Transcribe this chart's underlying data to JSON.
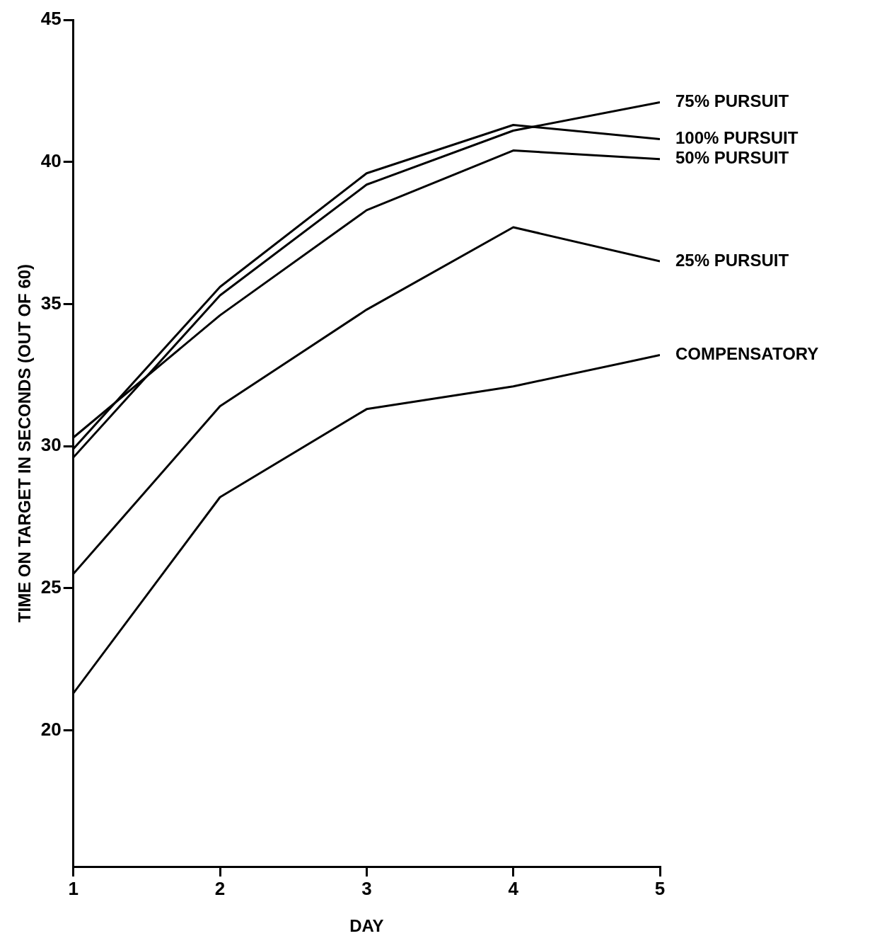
{
  "chart_data": {
    "type": "line",
    "xlabel": "DAY",
    "ylabel": "TIME ON TARGET IN SECONDS (OUT OF 60)",
    "x": [
      1,
      2,
      3,
      4,
      5
    ],
    "series": [
      {
        "name": "75% PURSUIT",
        "color": "#000000",
        "values": [
          29.6,
          35.3,
          39.2,
          41.1,
          42.1
        ]
      },
      {
        "name": "100% PURSUIT",
        "color": "#000000",
        "values": [
          29.9,
          35.6,
          39.6,
          41.3,
          40.8
        ]
      },
      {
        "name": "50% PURSUIT",
        "color": "#000000",
        "values": [
          30.3,
          34.6,
          38.3,
          40.4,
          40.1
        ]
      },
      {
        "name": "25% PURSUIT",
        "color": "#000000",
        "values": [
          25.5,
          31.4,
          34.8,
          37.7,
          36.5
        ]
      },
      {
        "name": "COMPENSATORY",
        "color": "#000000",
        "values": [
          21.3,
          28.2,
          31.3,
          32.1,
          33.2
        ]
      }
    ],
    "xlim": [
      1,
      5
    ],
    "xticks": [
      1,
      2,
      3,
      4,
      5
    ],
    "ylim": [
      15.2,
      45
    ],
    "yticks": [
      20,
      25,
      30,
      35,
      40,
      45
    ],
    "grid": false,
    "legend": false,
    "marker": "none",
    "line_style": "solid"
  }
}
